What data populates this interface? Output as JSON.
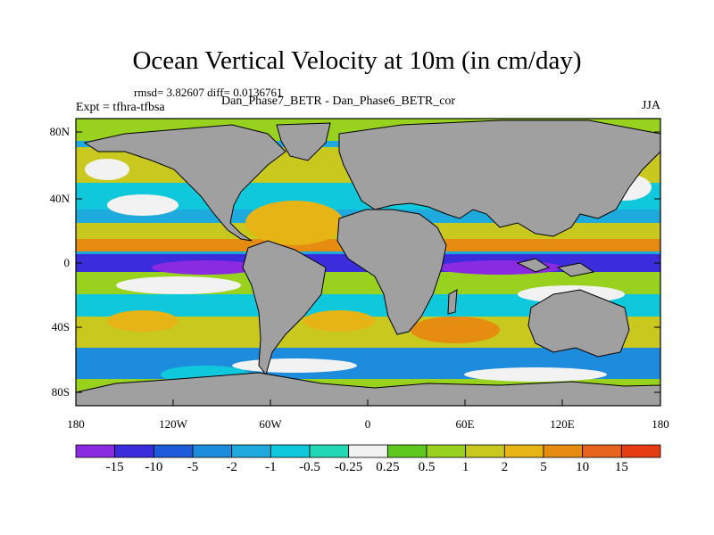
{
  "title": "Ocean Vertical Velocity at 10m (in cm/day)",
  "stats": "rmsd= 3.82607 diff= 0.0136761",
  "case_label": "Dan_Phase7_BETR - Dan_Phase6_BETR_cor",
  "expt_label": "Expt = tfhra-tfbsa",
  "season": "JJA",
  "axes": {
    "lat_ticks": [
      "80N",
      "40N",
      "0",
      "40S",
      "80S"
    ],
    "lon_ticks": [
      "180",
      "120W",
      "60W",
      "0",
      "60E",
      "120E",
      "180"
    ]
  },
  "colorbar": {
    "colors": [
      "#8a2be2",
      "#3c2ddc",
      "#1e5adc",
      "#1e8cdc",
      "#1eaadc",
      "#10c8dc",
      "#22d8b4",
      "#f2f2f2",
      "#5ec81e",
      "#98d21e",
      "#c8c81e",
      "#e6b414",
      "#e68c10",
      "#e6641e",
      "#e63c14"
    ],
    "labels": [
      "-15",
      "-10",
      "-5",
      "-2",
      "-1",
      "-0.5",
      "-0.25",
      "0.25",
      "0.5",
      "1",
      "2",
      "5",
      "10",
      "15"
    ]
  },
  "land_color": "#a0a0a0"
}
